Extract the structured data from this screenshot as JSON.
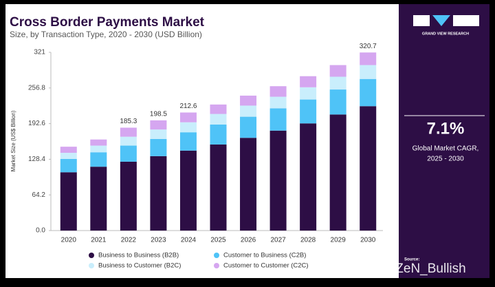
{
  "chart_data": {
    "type": "stacked_bar",
    "title": "Cross Border Payments Market",
    "subtitle": "Size, by Transaction Type, 2020 - 2030 (USD Billion)",
    "y_label": "Market Size (US$ Billion)",
    "categories": [
      "2020",
      "2021",
      "2022",
      "2023",
      "2024",
      "2025",
      "2026",
      "2027",
      "2028",
      "2029",
      "2030"
    ],
    "series": [
      {
        "name": "Business to Business (B2B)",
        "color": "#2d0e45",
        "values": [
          105,
          115,
          124,
          134,
          144,
          155,
          167,
          180,
          193,
          209,
          224
        ]
      },
      {
        "name": "Customer to Business (C2B)",
        "color": "#4fc3f7",
        "values": [
          24,
          26,
          29,
          31,
          33,
          36,
          38,
          40,
          43,
          45,
          49
        ]
      },
      {
        "name": "Business to Customer (B2C)",
        "color": "#c9eefc",
        "values": [
          11,
          12,
          16,
          17,
          18,
          19,
          20,
          21,
          22,
          23,
          25
        ]
      },
      {
        "name": "Customer to Customer (C2C)",
        "color": "#d5a6f0",
        "values": [
          11,
          11,
          16.3,
          16.5,
          17.6,
          17,
          18,
          19,
          20,
          21,
          22.7
        ]
      }
    ],
    "totals": [
      null,
      null,
      185.3,
      198.5,
      212.6,
      null,
      null,
      null,
      null,
      null,
      320.7
    ],
    "ylim": [
      0,
      321
    ],
    "yticks": [
      {
        "value": 0,
        "label": "0.0"
      },
      64.2,
      128.4,
      192.6,
      256.8,
      321
    ],
    "grid": false
  },
  "sidebar": {
    "brand": "GRAND VIEW RESEARCH",
    "cagr": "7.1%",
    "cagr_label": "Global Market CAGR,",
    "period": "2025 - 2030",
    "source": "Source:"
  },
  "watermark": "@ZeN_Bullish"
}
